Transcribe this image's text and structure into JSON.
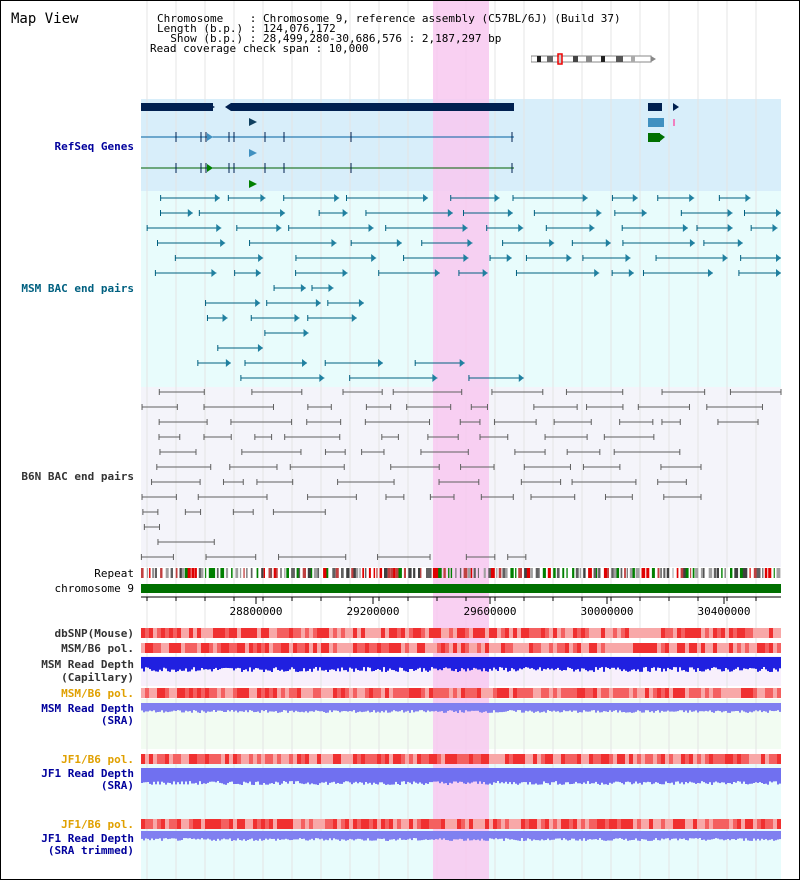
{
  "page": {
    "title": "Map View"
  },
  "header": {
    "line1": "Chromosome    : Chromosome 9, reference assembly (C57BL/6J) (Build 37)",
    "line2": "Length (b.p.) : 124,076,172",
    "line3": "  Show (b.p.) : 28,499,280-30,686,576 : 2,187,297 bp",
    "line4": "Read coverage check span : 10,000"
  },
  "tracks": {
    "refseq": "RefSeq Genes",
    "msm_bac": "MSM BAC end pairs",
    "b6n_bac": "B6N BAC end pairs",
    "repeat": "Repeat",
    "chromosome": "chromosome 9",
    "dbsnp": "dbSNP(Mouse)",
    "msm_b6_pol": "MSM/B6 pol.",
    "msm_depth_cap_1": "MSM Read Depth",
    "msm_depth_cap_2": "(Capillary)",
    "msm_b6_pol_sra": "MSM/B6 pol.",
    "msm_depth_sra_1": "MSM Read Depth",
    "msm_depth_sra_2": "(SRA)",
    "jf1_b6_pol": "JF1/B6 pol.",
    "jf1_depth_1": "JF1 Read Depth",
    "jf1_depth_2": "(SRA)",
    "jf1_b6_pol_2": "JF1/B6 pol.",
    "jf1_trim_1": "JF1 Read Depth",
    "jf1_trim_2": "(SRA trimmed)"
  },
  "axis": {
    "ticks": [
      "28800000",
      "29200000",
      "29600000",
      "30000000",
      "30400000"
    ],
    "tick_values": [
      28800000,
      29200000,
      29600000,
      30000000,
      30400000
    ]
  },
  "colors": {
    "highlight": "#f8c8f0",
    "refseq_bg": "#d8eefa",
    "msm_bg": "#e8fcfc",
    "b6n_bg": "#f4f4fa",
    "gene_dark": "#002050",
    "msm_line": "#006080",
    "repeat_red": "#e00000",
    "chr_green": "#007000",
    "depth_blue": "#2020e0",
    "depth_light": "#8080f0"
  }
}
